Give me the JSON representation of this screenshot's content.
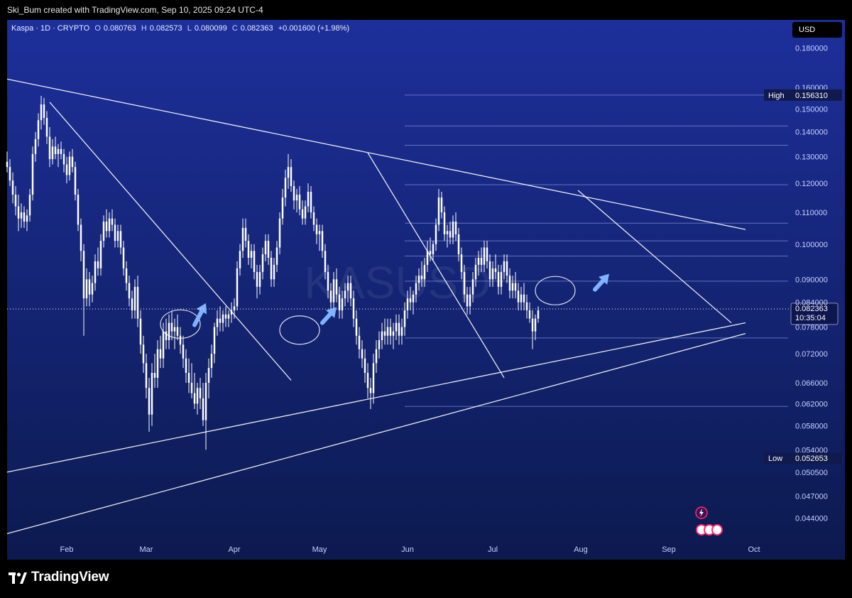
{
  "header": {
    "attribution": "Ski_Bum created with TradingView.com, Sep 10, 2025 09:24 UTC-4"
  },
  "legend": {
    "symbol": "Kaspa · 1D · CRYPTO",
    "o_label": "O",
    "o": "0.080763",
    "h_label": "H",
    "h": "0.082573",
    "l_label": "L",
    "l": "0.080099",
    "c_label": "C",
    "c": "0.082363",
    "change": "+0.001600 (+1.98%)"
  },
  "currency_button": "USD",
  "watermark": "KASUSD",
  "footer": {
    "brand": "TradingView"
  },
  "colors": {
    "background_top": "#1d2f9b",
    "background_bottom": "#0c1a4f",
    "candle": "#ffffff",
    "axis_text": "#c8d1ff",
    "annotation": "#7fb2ff"
  },
  "chart_data": {
    "type": "candlestick",
    "symbol": "KASUSD",
    "interval": "1D",
    "yscale": "log",
    "ylim": [
      0.0415,
      0.195
    ],
    "y_ticks": [
      "0.180000",
      "0.160000",
      "0.150000",
      "0.140000",
      "0.130000",
      "0.120000",
      "0.110000",
      "0.100000",
      "0.090000",
      "0.084000",
      "0.078000",
      "0.072000",
      "0.066000",
      "0.062000",
      "0.058000",
      "0.054000",
      "0.050500",
      "0.047000",
      "0.044000"
    ],
    "x_labels": [
      "Feb",
      "Mar",
      "Apr",
      "May",
      "Jun",
      "Jul",
      "Aug",
      "Sep",
      "Oct"
    ],
    "x_label_days": [
      31,
      59,
      90,
      120,
      151,
      181,
      212,
      243,
      273
    ],
    "x_range_days": [
      10,
      285
    ],
    "high_label": "High",
    "high_value": "0.156310",
    "low_label": "Low",
    "low_value": "0.052653",
    "last_price": "0.082363",
    "countdown": "10:35:04",
    "fib_levels": [
      0.15631,
      0.1425,
      0.1345,
      0.1195,
      0.1065,
      0.101,
      0.0965,
      0.0895,
      0.0755,
      0.0615
    ],
    "trendlines": [
      {
        "from": [
          10,
          0.164
        ],
        "to": [
          270,
          0.1045
        ]
      },
      {
        "from": [
          10,
          0.0505
        ],
        "to": [
          270,
          0.079
        ]
      },
      {
        "from": [
          10,
          0.042
        ],
        "to": [
          270,
          0.0765
        ]
      },
      {
        "from": [
          25,
          0.153
        ],
        "to": [
          110,
          0.0665
        ]
      },
      {
        "from": [
          137,
          0.1315
        ],
        "to": [
          185,
          0.067
        ]
      },
      {
        "from": [
          211,
          0.1175
        ],
        "to": [
          265,
          0.079
        ]
      }
    ],
    "candles": [
      [
        10,
        0.128,
        0.132,
        0.124,
        0.126
      ],
      [
        11,
        0.126,
        0.129,
        0.119,
        0.121
      ],
      [
        12,
        0.121,
        0.124,
        0.113,
        0.116
      ],
      [
        13,
        0.116,
        0.119,
        0.109,
        0.112
      ],
      [
        14,
        0.112,
        0.116,
        0.104,
        0.108
      ],
      [
        15,
        0.108,
        0.113,
        0.105,
        0.11
      ],
      [
        16,
        0.11,
        0.112,
        0.105,
        0.107
      ],
      [
        17,
        0.107,
        0.111,
        0.104,
        0.109
      ],
      [
        18,
        0.109,
        0.118,
        0.107,
        0.116
      ],
      [
        19,
        0.116,
        0.134,
        0.114,
        0.131
      ],
      [
        20,
        0.131,
        0.14,
        0.128,
        0.137
      ],
      [
        21,
        0.137,
        0.148,
        0.134,
        0.145
      ],
      [
        22,
        0.145,
        0.156,
        0.141,
        0.152
      ],
      [
        23,
        0.152,
        0.155,
        0.143,
        0.146
      ],
      [
        24,
        0.146,
        0.149,
        0.135,
        0.138
      ],
      [
        25,
        0.138,
        0.142,
        0.126,
        0.129
      ],
      [
        26,
        0.129,
        0.137,
        0.127,
        0.134
      ],
      [
        27,
        0.134,
        0.138,
        0.129,
        0.131
      ],
      [
        28,
        0.131,
        0.135,
        0.126,
        0.133
      ],
      [
        29,
        0.133,
        0.136,
        0.129,
        0.131
      ],
      [
        30,
        0.131,
        0.133,
        0.124,
        0.127
      ],
      [
        31,
        0.127,
        0.13,
        0.12,
        0.123
      ],
      [
        32,
        0.123,
        0.132,
        0.121,
        0.13
      ],
      [
        33,
        0.13,
        0.133,
        0.124,
        0.126
      ],
      [
        34,
        0.126,
        0.128,
        0.114,
        0.116
      ],
      [
        35,
        0.116,
        0.118,
        0.104,
        0.106
      ],
      [
        36,
        0.106,
        0.108,
        0.095,
        0.098
      ],
      [
        37,
        0.098,
        0.1,
        0.076,
        0.085
      ],
      [
        38,
        0.085,
        0.093,
        0.083,
        0.09
      ],
      [
        39,
        0.09,
        0.092,
        0.083,
        0.086
      ],
      [
        40,
        0.086,
        0.091,
        0.084,
        0.089
      ],
      [
        41,
        0.089,
        0.097,
        0.087,
        0.095
      ],
      [
        42,
        0.095,
        0.099,
        0.091,
        0.093
      ],
      [
        43,
        0.093,
        0.103,
        0.091,
        0.101
      ],
      [
        44,
        0.101,
        0.109,
        0.099,
        0.107
      ],
      [
        45,
        0.107,
        0.111,
        0.102,
        0.104
      ],
      [
        46,
        0.104,
        0.11,
        0.102,
        0.108
      ],
      [
        47,
        0.108,
        0.111,
        0.104,
        0.106
      ],
      [
        48,
        0.106,
        0.108,
        0.099,
        0.101
      ],
      [
        49,
        0.101,
        0.106,
        0.099,
        0.104
      ],
      [
        50,
        0.104,
        0.106,
        0.097,
        0.099
      ],
      [
        51,
        0.099,
        0.101,
        0.091,
        0.093
      ],
      [
        52,
        0.093,
        0.095,
        0.087,
        0.089
      ],
      [
        53,
        0.089,
        0.091,
        0.083,
        0.085
      ],
      [
        54,
        0.085,
        0.087,
        0.08,
        0.082
      ],
      [
        55,
        0.082,
        0.09,
        0.08,
        0.088
      ],
      [
        56,
        0.088,
        0.091,
        0.078,
        0.08
      ],
      [
        57,
        0.08,
        0.082,
        0.072,
        0.074
      ],
      [
        58,
        0.074,
        0.076,
        0.068,
        0.07
      ],
      [
        59,
        0.07,
        0.072,
        0.063,
        0.065
      ],
      [
        60,
        0.065,
        0.067,
        0.057,
        0.06
      ],
      [
        61,
        0.06,
        0.07,
        0.058,
        0.068
      ],
      [
        62,
        0.068,
        0.072,
        0.065,
        0.067
      ],
      [
        63,
        0.067,
        0.075,
        0.065,
        0.073
      ],
      [
        64,
        0.073,
        0.076,
        0.069,
        0.071
      ],
      [
        65,
        0.071,
        0.079,
        0.069,
        0.077
      ],
      [
        66,
        0.077,
        0.08,
        0.073,
        0.075
      ],
      [
        67,
        0.075,
        0.081,
        0.073,
        0.079
      ],
      [
        68,
        0.079,
        0.082,
        0.075,
        0.077
      ],
      [
        69,
        0.077,
        0.08,
        0.073,
        0.078
      ],
      [
        70,
        0.078,
        0.081,
        0.075,
        0.076
      ],
      [
        71,
        0.076,
        0.078,
        0.072,
        0.074
      ],
      [
        72,
        0.074,
        0.076,
        0.069,
        0.071
      ],
      [
        73,
        0.071,
        0.073,
        0.066,
        0.068
      ],
      [
        74,
        0.068,
        0.071,
        0.064,
        0.066
      ],
      [
        75,
        0.066,
        0.07,
        0.063,
        0.064
      ],
      [
        76,
        0.064,
        0.068,
        0.061,
        0.062
      ],
      [
        77,
        0.062,
        0.066,
        0.06,
        0.065
      ],
      [
        78,
        0.065,
        0.067,
        0.061,
        0.063
      ],
      [
        79,
        0.063,
        0.066,
        0.058,
        0.059
      ],
      [
        80,
        0.059,
        0.068,
        0.054,
        0.066
      ],
      [
        81,
        0.066,
        0.071,
        0.063,
        0.069
      ],
      [
        82,
        0.069,
        0.074,
        0.067,
        0.072
      ],
      [
        83,
        0.072,
        0.079,
        0.07,
        0.078
      ],
      [
        84,
        0.078,
        0.082,
        0.076,
        0.08
      ],
      [
        85,
        0.08,
        0.083,
        0.077,
        0.079
      ],
      [
        86,
        0.079,
        0.082,
        0.077,
        0.081
      ],
      [
        87,
        0.081,
        0.083,
        0.078,
        0.08
      ],
      [
        88,
        0.08,
        0.082,
        0.078,
        0.081
      ],
      [
        89,
        0.081,
        0.084,
        0.079,
        0.082
      ],
      [
        90,
        0.082,
        0.085,
        0.08,
        0.083
      ],
      [
        91,
        0.083,
        0.095,
        0.082,
        0.093
      ],
      [
        92,
        0.093,
        0.1,
        0.091,
        0.098
      ],
      [
        93,
        0.098,
        0.108,
        0.096,
        0.105
      ],
      [
        94,
        0.105,
        0.108,
        0.099,
        0.101
      ],
      [
        95,
        0.101,
        0.103,
        0.094,
        0.096
      ],
      [
        96,
        0.096,
        0.1,
        0.093,
        0.098
      ],
      [
        97,
        0.098,
        0.1,
        0.09,
        0.092
      ],
      [
        98,
        0.092,
        0.094,
        0.085,
        0.088
      ],
      [
        99,
        0.088,
        0.094,
        0.086,
        0.092
      ],
      [
        100,
        0.092,
        0.099,
        0.09,
        0.097
      ],
      [
        101,
        0.097,
        0.103,
        0.095,
        0.101
      ],
      [
        102,
        0.101,
        0.103,
        0.094,
        0.096
      ],
      [
        103,
        0.096,
        0.098,
        0.088,
        0.09
      ],
      [
        104,
        0.09,
        0.096,
        0.088,
        0.094
      ],
      [
        105,
        0.094,
        0.101,
        0.092,
        0.099
      ],
      [
        106,
        0.099,
        0.11,
        0.097,
        0.108
      ],
      [
        107,
        0.108,
        0.118,
        0.106,
        0.115
      ],
      [
        108,
        0.115,
        0.125,
        0.112,
        0.122
      ],
      [
        109,
        0.122,
        0.131,
        0.118,
        0.126
      ],
      [
        110,
        0.126,
        0.129,
        0.117,
        0.119
      ],
      [
        111,
        0.119,
        0.121,
        0.111,
        0.114
      ],
      [
        112,
        0.114,
        0.118,
        0.11,
        0.116
      ],
      [
        113,
        0.116,
        0.119,
        0.109,
        0.111
      ],
      [
        114,
        0.111,
        0.114,
        0.106,
        0.108
      ],
      [
        115,
        0.108,
        0.114,
        0.106,
        0.112
      ],
      [
        116,
        0.112,
        0.12,
        0.11,
        0.117
      ],
      [
        117,
        0.117,
        0.119,
        0.108,
        0.11
      ],
      [
        118,
        0.11,
        0.112,
        0.104,
        0.106
      ],
      [
        119,
        0.106,
        0.108,
        0.1,
        0.103
      ],
      [
        120,
        0.103,
        0.106,
        0.098,
        0.104
      ],
      [
        121,
        0.104,
        0.106,
        0.096,
        0.098
      ],
      [
        122,
        0.098,
        0.1,
        0.09,
        0.092
      ],
      [
        123,
        0.092,
        0.094,
        0.085,
        0.087
      ],
      [
        124,
        0.087,
        0.089,
        0.082,
        0.084
      ],
      [
        125,
        0.084,
        0.092,
        0.082,
        0.09
      ],
      [
        126,
        0.09,
        0.093,
        0.084,
        0.086
      ],
      [
        127,
        0.086,
        0.088,
        0.08,
        0.082
      ],
      [
        128,
        0.082,
        0.087,
        0.08,
        0.085
      ],
      [
        129,
        0.085,
        0.089,
        0.083,
        0.087
      ],
      [
        130,
        0.087,
        0.091,
        0.084,
        0.089
      ],
      [
        131,
        0.089,
        0.091,
        0.083,
        0.085
      ],
      [
        132,
        0.085,
        0.087,
        0.078,
        0.08
      ],
      [
        133,
        0.08,
        0.082,
        0.074,
        0.076
      ],
      [
        134,
        0.076,
        0.078,
        0.071,
        0.073
      ],
      [
        135,
        0.073,
        0.075,
        0.069,
        0.071
      ],
      [
        136,
        0.071,
        0.073,
        0.066,
        0.068
      ],
      [
        137,
        0.068,
        0.07,
        0.063,
        0.065
      ],
      [
        138,
        0.065,
        0.067,
        0.061,
        0.064
      ],
      [
        139,
        0.064,
        0.072,
        0.062,
        0.07
      ],
      [
        140,
        0.07,
        0.075,
        0.068,
        0.073
      ],
      [
        141,
        0.073,
        0.077,
        0.071,
        0.075
      ],
      [
        142,
        0.075,
        0.079,
        0.073,
        0.077
      ],
      [
        143,
        0.077,
        0.08,
        0.074,
        0.076
      ],
      [
        144,
        0.076,
        0.08,
        0.074,
        0.078
      ],
      [
        145,
        0.078,
        0.08,
        0.074,
        0.076
      ],
      [
        146,
        0.076,
        0.079,
        0.073,
        0.077
      ],
      [
        147,
        0.077,
        0.081,
        0.075,
        0.079
      ],
      [
        148,
        0.079,
        0.081,
        0.074,
        0.076
      ],
      [
        149,
        0.076,
        0.08,
        0.074,
        0.078
      ],
      [
        150,
        0.078,
        0.084,
        0.076,
        0.082
      ],
      [
        151,
        0.082,
        0.087,
        0.08,
        0.085
      ],
      [
        152,
        0.085,
        0.088,
        0.082,
        0.084
      ],
      [
        153,
        0.084,
        0.087,
        0.081,
        0.086
      ],
      [
        154,
        0.086,
        0.091,
        0.084,
        0.089
      ],
      [
        155,
        0.089,
        0.093,
        0.087,
        0.091
      ],
      [
        156,
        0.091,
        0.095,
        0.088,
        0.09
      ],
      [
        157,
        0.09,
        0.096,
        0.088,
        0.094
      ],
      [
        158,
        0.094,
        0.101,
        0.092,
        0.098
      ],
      [
        159,
        0.098,
        0.102,
        0.095,
        0.097
      ],
      [
        160,
        0.097,
        0.101,
        0.095,
        0.1
      ],
      [
        161,
        0.1,
        0.108,
        0.098,
        0.106
      ],
      [
        162,
        0.106,
        0.118,
        0.104,
        0.115
      ],
      [
        163,
        0.115,
        0.117,
        0.108,
        0.11
      ],
      [
        164,
        0.11,
        0.112,
        0.101,
        0.103
      ],
      [
        165,
        0.103,
        0.106,
        0.099,
        0.104
      ],
      [
        166,
        0.104,
        0.107,
        0.1,
        0.102
      ],
      [
        167,
        0.102,
        0.109,
        0.1,
        0.107
      ],
      [
        168,
        0.107,
        0.11,
        0.101,
        0.103
      ],
      [
        169,
        0.103,
        0.105,
        0.095,
        0.097
      ],
      [
        170,
        0.097,
        0.099,
        0.09,
        0.092
      ],
      [
        171,
        0.092,
        0.094,
        0.084,
        0.086
      ],
      [
        172,
        0.086,
        0.088,
        0.081,
        0.083
      ],
      [
        173,
        0.083,
        0.088,
        0.081,
        0.086
      ],
      [
        174,
        0.086,
        0.092,
        0.084,
        0.09
      ],
      [
        175,
        0.09,
        0.096,
        0.088,
        0.094
      ],
      [
        176,
        0.094,
        0.098,
        0.091,
        0.096
      ],
      [
        177,
        0.096,
        0.099,
        0.092,
        0.094
      ],
      [
        178,
        0.094,
        0.101,
        0.092,
        0.099
      ],
      [
        179,
        0.099,
        0.101,
        0.093,
        0.095
      ],
      [
        180,
        0.095,
        0.097,
        0.088,
        0.09
      ],
      [
        181,
        0.09,
        0.095,
        0.088,
        0.093
      ],
      [
        182,
        0.093,
        0.097,
        0.09,
        0.092
      ],
      [
        183,
        0.092,
        0.094,
        0.086,
        0.088
      ],
      [
        184,
        0.088,
        0.094,
        0.086,
        0.092
      ],
      [
        185,
        0.092,
        0.097,
        0.09,
        0.095
      ],
      [
        186,
        0.095,
        0.097,
        0.089,
        0.091
      ],
      [
        187,
        0.091,
        0.093,
        0.085,
        0.087
      ],
      [
        188,
        0.087,
        0.091,
        0.085,
        0.089
      ],
      [
        189,
        0.089,
        0.092,
        0.085,
        0.087
      ],
      [
        190,
        0.087,
        0.089,
        0.082,
        0.084
      ],
      [
        191,
        0.084,
        0.088,
        0.082,
        0.086
      ],
      [
        192,
        0.086,
        0.089,
        0.082,
        0.084
      ],
      [
        193,
        0.084,
        0.086,
        0.08,
        0.082
      ],
      [
        194,
        0.082,
        0.084,
        0.079,
        0.08
      ],
      [
        195,
        0.08,
        0.082,
        0.073,
        0.077
      ],
      [
        196,
        0.077,
        0.081,
        0.075,
        0.08
      ],
      [
        197,
        0.08,
        0.083,
        0.079,
        0.082
      ]
    ],
    "annotations": {
      "ellipses": [
        [
          71,
          0.0787
        ],
        [
          113,
          0.0773
        ],
        [
          203,
          0.087
        ]
      ],
      "arrows": [
        [
          76,
          0.0785,
          80,
          0.0838
        ],
        [
          121,
          0.079,
          126,
          0.0828
        ],
        [
          217,
          0.0873,
          222,
          0.0915
        ]
      ]
    }
  }
}
